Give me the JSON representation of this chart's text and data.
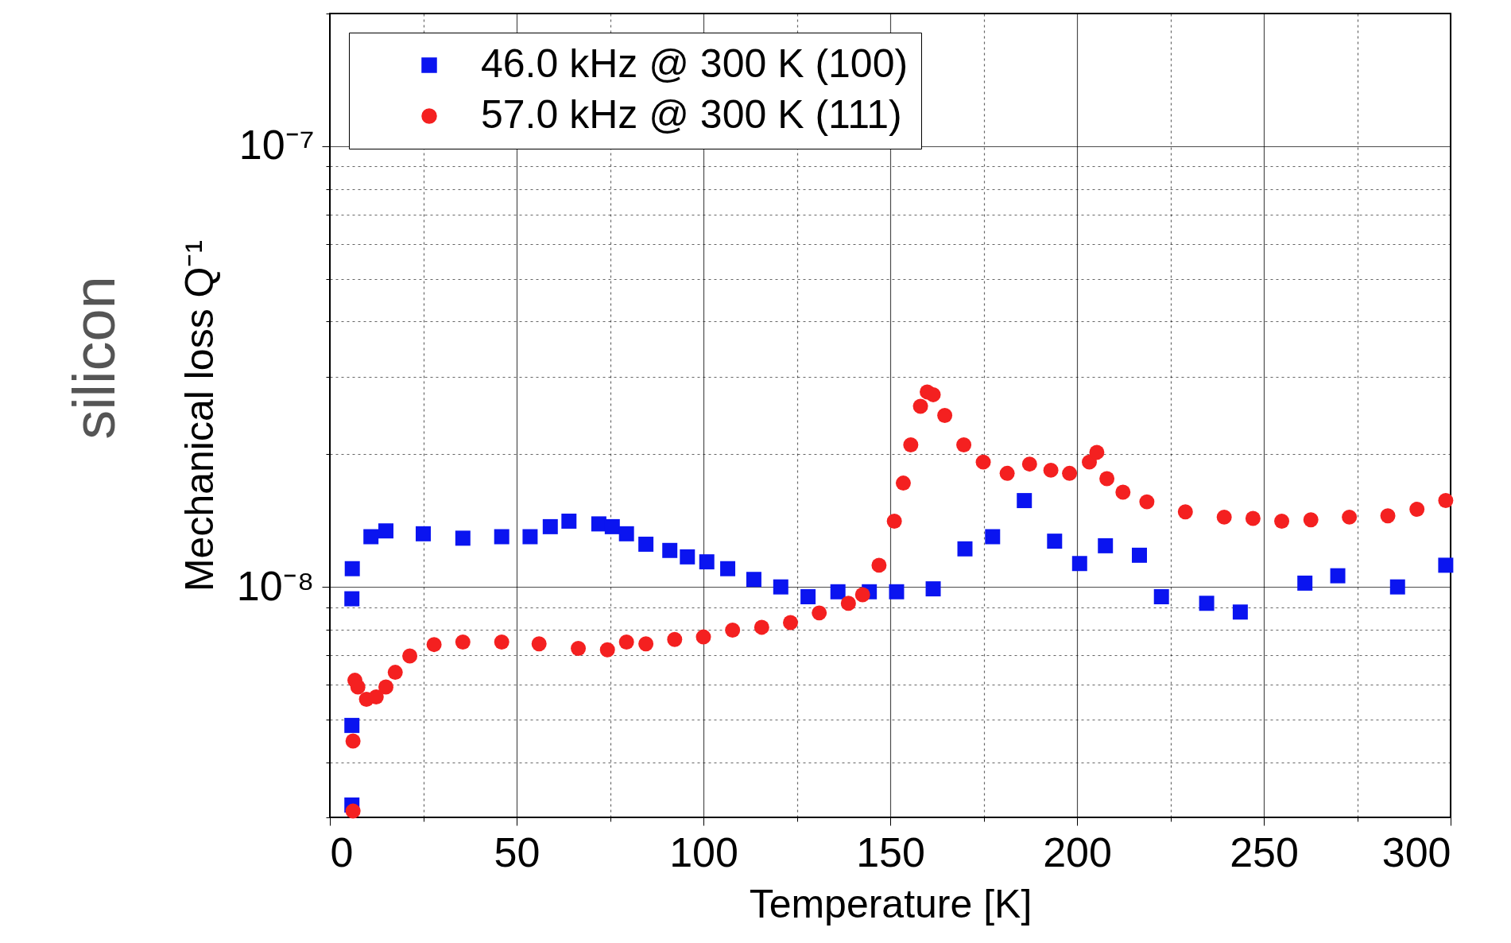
{
  "chart_data": {
    "type": "scatter",
    "xlabel": "Temperature [K]",
    "ylabel": "Mechanical loss Q⁻¹",
    "annotations": [
      "silicon"
    ],
    "xlim": [
      0,
      300
    ],
    "xticks": [
      0,
      {
        "value": 25,
        "label": null
      },
      50,
      {
        "value": 75,
        "label": null
      },
      100,
      {
        "value": 125,
        "label": null
      },
      150,
      {
        "value": 175,
        "label": null
      },
      200,
      {
        "value": 225,
        "label": null
      },
      250,
      {
        "value": 275,
        "label": null
      },
      300
    ],
    "ylim": [
      3e-09,
      2e-07
    ],
    "log": true,
    "yticks": [
      {
        "value": 3e-09,
        "label": null
      },
      {
        "value": 4e-09,
        "label": null
      },
      {
        "value": 5e-09,
        "label": null
      },
      {
        "value": 6e-09,
        "label": null
      },
      {
        "value": 7e-09,
        "label": null
      },
      {
        "value": 8e-09,
        "label": null
      },
      {
        "value": 9e-09,
        "label": null
      },
      {
        "value": 1e-08,
        "label": "10⁻⁸"
      },
      {
        "value": 2e-08,
        "label": null
      },
      {
        "value": 3e-08,
        "label": null
      },
      {
        "value": 4e-08,
        "label": null
      },
      {
        "value": 5e-08,
        "label": null
      },
      {
        "value": 6e-08,
        "label": null
      },
      {
        "value": 7e-08,
        "label": null
      },
      {
        "value": 8e-08,
        "label": null
      },
      {
        "value": 9e-08,
        "label": null
      },
      {
        "value": 1e-07,
        "label": "10⁻⁷"
      },
      {
        "value": 2e-07,
        "label": null
      }
    ],
    "grid": true,
    "legend": "top left",
    "series": [
      {
        "name": "46.0 kHz @ 300 K (100)",
        "color": "#0a14f0",
        "marker": "square",
        "x": [
          5.9,
          5.9,
          5.9,
          6,
          11,
          15,
          25,
          35.6,
          46,
          53.6,
          59,
          64,
          72,
          75.6,
          79.4,
          84.6,
          91,
          95.7,
          100.9,
          106.5,
          113.5,
          120.7,
          128,
          136,
          144.4,
          151.7,
          161.5,
          170,
          177.4,
          185.9,
          194,
          200.7,
          207.6,
          216.7,
          222.6,
          234.7,
          243.7,
          261,
          269.8,
          285.8,
          298.7
        ],
        "values": [
          3.2e-09,
          4.85e-09,
          9.4e-09,
          1.1e-08,
          1.3e-08,
          1.34e-08,
          1.32e-08,
          1.29e-08,
          1.3e-08,
          1.3e-08,
          1.37e-08,
          1.41e-08,
          1.39e-08,
          1.37e-08,
          1.32e-08,
          1.25e-08,
          1.21e-08,
          1.17e-08,
          1.14e-08,
          1.1e-08,
          1.04e-08,
          1e-08,
          9.5e-09,
          9.75e-09,
          9.75e-09,
          9.75e-09,
          9.9e-09,
          1.22e-08,
          1.3e-08,
          1.57e-08,
          1.27e-08,
          1.13e-08,
          1.24e-08,
          1.18e-08,
          9.5e-09,
          9.18e-09,
          8.77e-09,
          1.02e-08,
          1.06e-08,
          1e-08,
          1.12e-08
        ]
      },
      {
        "name": "57.0 kHz @ 300 K (111)",
        "color": "#f42020",
        "marker": "circle",
        "x": [
          6.2,
          6.2,
          6.7,
          7.5,
          9.8,
          12.4,
          15,
          17.5,
          21.4,
          27.9,
          35.6,
          46,
          56,
          66.5,
          74.3,
          79.4,
          84.6,
          92.3,
          100,
          107.8,
          115.6,
          123.3,
          131,
          138.8,
          142.6,
          147,
          151.1,
          153.5,
          155.5,
          158.1,
          159.9,
          161.5,
          164.6,
          169.7,
          174.9,
          181.3,
          187.3,
          193,
          198,
          203.3,
          205.3,
          208,
          212.3,
          218.7,
          229,
          239.4,
          247.1,
          254.8,
          262.6,
          272.9,
          283.2,
          291,
          298.7
        ],
        "values": [
          3.1e-09,
          4.47e-09,
          6.14e-09,
          5.93e-09,
          5.56e-09,
          5.63e-09,
          5.93e-09,
          6.4e-09,
          6.97e-09,
          7.4e-09,
          7.5e-09,
          7.5e-09,
          7.43e-09,
          7.25e-09,
          7.2e-09,
          7.5e-09,
          7.43e-09,
          7.6e-09,
          7.7e-09,
          7.98e-09,
          8.1e-09,
          8.3e-09,
          8.73e-09,
          9.18e-09,
          9.6e-09,
          1.12e-08,
          1.41e-08,
          1.72e-08,
          2.1e-08,
          2.57e-08,
          2.77e-08,
          2.73e-08,
          2.45e-08,
          2.1e-08,
          1.92e-08,
          1.81e-08,
          1.9e-08,
          1.84e-08,
          1.81e-08,
          1.92e-08,
          2.02e-08,
          1.76e-08,
          1.64e-08,
          1.56e-08,
          1.48e-08,
          1.44e-08,
          1.43e-08,
          1.41e-08,
          1.42e-08,
          1.44e-08,
          1.45e-08,
          1.5e-08,
          1.57e-08
        ]
      }
    ]
  }
}
